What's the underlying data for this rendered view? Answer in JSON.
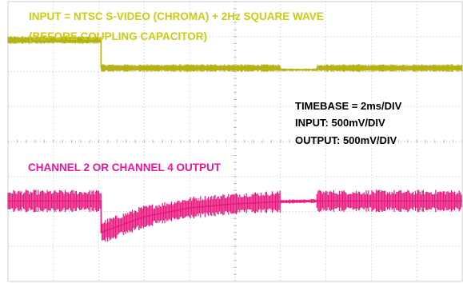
{
  "chart_data": {
    "type": "line",
    "annotations": {
      "input_line1": "INPUT = NTSC S-VIDEO (CHROMA) + 2Hz SQUARE WAVE",
      "input_line2": "(BEFORE COUPLING CAPACITOR)",
      "output_label": "CHANNEL 2 OR CHANNEL 4 OUTPUT",
      "settings": [
        "TIMEBASE = 2ms/DIV",
        "INPUT: 500mV/DIV",
        "OUTPUT: 500mV/DIV"
      ]
    },
    "divisions": {
      "x": 10,
      "y": 8
    },
    "grid": true,
    "xlim_div": [
      0,
      10
    ],
    "series": [
      {
        "channel": "input",
        "color": "#b5b217",
        "trace_points_div": [
          [
            0,
            6.9
          ],
          [
            2.05,
            6.9
          ],
          [
            2.05,
            6.1
          ],
          [
            6.0,
            6.1
          ],
          [
            6.0,
            6.05
          ],
          [
            6.8,
            6.05
          ],
          [
            6.8,
            6.1
          ],
          [
            10,
            6.1
          ]
        ]
      },
      {
        "channel": "output",
        "color": "#e8187e",
        "trace_points_div": [
          [
            0,
            2.3
          ],
          [
            2.05,
            2.3
          ],
          [
            2.05,
            1.4
          ],
          [
            3.0,
            1.85
          ],
          [
            4.0,
            2.1
          ],
          [
            5.0,
            2.22
          ],
          [
            6.0,
            2.28
          ],
          [
            6.8,
            2.3
          ],
          [
            10,
            2.3
          ]
        ]
      }
    ]
  }
}
